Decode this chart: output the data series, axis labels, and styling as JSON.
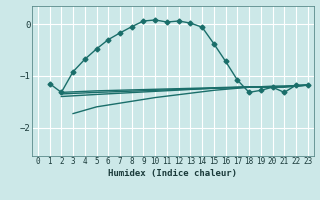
{
  "xlabel": "Humidex (Indice chaleur)",
  "ylabel": "",
  "bg_color": "#cce8e8",
  "grid_color": "#ffffff",
  "line_color": "#1a6e6a",
  "xlim": [
    -0.5,
    23.5
  ],
  "ylim": [
    -2.55,
    0.35
  ],
  "yticks": [
    -2,
    -1,
    0
  ],
  "xticks": [
    0,
    1,
    2,
    3,
    4,
    5,
    6,
    7,
    8,
    9,
    10,
    11,
    12,
    13,
    14,
    15,
    16,
    17,
    18,
    19,
    20,
    21,
    22,
    23
  ],
  "main_x": [
    1,
    2,
    3,
    4,
    5,
    6,
    7,
    8,
    9,
    10,
    11,
    12,
    13,
    14,
    15,
    16,
    17,
    18,
    19,
    20,
    21,
    22,
    23
  ],
  "main_y": [
    -1.15,
    -1.32,
    -0.92,
    -0.68,
    -0.48,
    -0.3,
    -0.17,
    -0.05,
    0.06,
    0.08,
    0.04,
    0.06,
    0.02,
    -0.06,
    -0.38,
    -0.72,
    -1.08,
    -1.32,
    -1.28,
    -1.22,
    -1.32,
    -1.18,
    -1.18
  ],
  "line2_x": [
    2,
    4,
    5,
    10,
    15,
    18,
    19,
    20,
    21,
    22,
    23
  ],
  "line2_y": [
    -1.32,
    -1.3,
    -1.29,
    -1.26,
    -1.23,
    -1.21,
    -1.21,
    -1.2,
    -1.2,
    -1.19,
    -1.18
  ],
  "line3_x": [
    2,
    5,
    10,
    15,
    18,
    19,
    20,
    21,
    22,
    23
  ],
  "line3_y": [
    -1.35,
    -1.32,
    -1.28,
    -1.24,
    -1.22,
    -1.21,
    -1.21,
    -1.2,
    -1.19,
    -1.18
  ],
  "line4_x": [
    2,
    5,
    10,
    15,
    18,
    19,
    20,
    21,
    22,
    23
  ],
  "line4_y": [
    -1.4,
    -1.36,
    -1.3,
    -1.24,
    -1.22,
    -1.22,
    -1.22,
    -1.21,
    -1.2,
    -1.18
  ],
  "line5_x": [
    3,
    5,
    10,
    15,
    18,
    19,
    20,
    21,
    22,
    23
  ],
  "line5_y": [
    -1.73,
    -1.6,
    -1.42,
    -1.28,
    -1.22,
    -1.22,
    -1.22,
    -1.22,
    -1.2,
    -1.18
  ],
  "marker_style": "D",
  "marker_size": 2.5,
  "line_width": 1.0
}
